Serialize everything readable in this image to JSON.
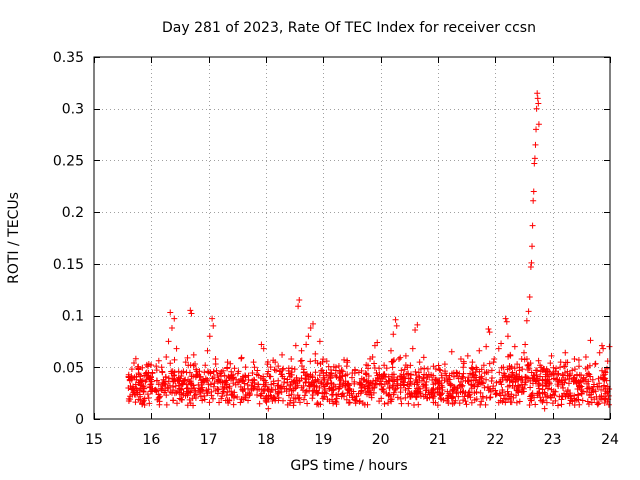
{
  "chart_data": {
    "type": "scatter",
    "title": "Day 281 of 2023, Rate Of TEC Index for receiver ccsn",
    "xlabel": "GPS time / hours",
    "ylabel": "ROTI / TECUs",
    "xlim": [
      15,
      24
    ],
    "ylim": [
      0,
      0.35
    ],
    "xticks": [
      15,
      16,
      17,
      18,
      19,
      20,
      21,
      22,
      23,
      24
    ],
    "xtick_labels": [
      "15",
      "16",
      "17",
      "18",
      "19",
      "20",
      "21",
      "22",
      "23",
      "24"
    ],
    "yticks": [
      0,
      0.05,
      0.1,
      0.15,
      0.2,
      0.25,
      0.3,
      0.35
    ],
    "ytick_labels": [
      "0",
      "0.05",
      "0.1",
      "0.15",
      "0.2",
      "0.25",
      "0.3",
      "0.35"
    ],
    "grid": true,
    "marker": "plus",
    "color": "#ff0000",
    "series": [
      {
        "name": "ROTI",
        "points": [
          [
            15.6,
            0.03
          ],
          [
            15.63,
            0.022
          ],
          [
            15.66,
            0.038
          ],
          [
            15.7,
            0.026
          ],
          [
            15.74,
            0.041
          ],
          [
            15.78,
            0.019
          ],
          [
            15.82,
            0.033
          ],
          [
            15.86,
            0.027
          ],
          [
            15.9,
            0.036
          ],
          [
            15.94,
            0.024
          ],
          [
            15.98,
            0.031
          ],
          [
            16.02,
            0.045
          ],
          [
            16.06,
            0.028
          ],
          [
            16.1,
            0.037
          ],
          [
            16.14,
            0.021
          ],
          [
            16.18,
            0.05
          ],
          [
            16.22,
            0.034
          ],
          [
            16.26,
            0.06
          ],
          [
            16.3,
            0.075
          ],
          [
            16.33,
            0.103
          ],
          [
            16.36,
            0.088
          ],
          [
            16.4,
            0.097
          ],
          [
            16.44,
            0.068
          ],
          [
            16.48,
            0.04
          ],
          [
            16.52,
            0.029
          ],
          [
            16.56,
            0.046
          ],
          [
            16.6,
            0.055
          ],
          [
            16.64,
            0.038
          ],
          [
            16.68,
            0.105
          ],
          [
            16.7,
            0.102
          ],
          [
            16.74,
            0.062
          ],
          [
            16.78,
            0.048
          ],
          [
            16.82,
            0.033
          ],
          [
            16.86,
            0.041
          ],
          [
            16.9,
            0.027
          ],
          [
            16.94,
            0.052
          ],
          [
            16.98,
            0.066
          ],
          [
            17.02,
            0.08
          ],
          [
            17.06,
            0.097
          ],
          [
            17.08,
            0.09
          ],
          [
            17.12,
            0.058
          ],
          [
            17.16,
            0.036
          ],
          [
            17.2,
            0.044
          ],
          [
            17.24,
            0.025
          ],
          [
            17.28,
            0.035
          ],
          [
            17.32,
            0.049
          ],
          [
            17.36,
            0.03
          ],
          [
            17.4,
            0.042
          ],
          [
            17.44,
            0.022
          ],
          [
            17.48,
            0.038
          ],
          [
            17.52,
            0.046
          ],
          [
            17.56,
            0.031
          ],
          [
            17.6,
            0.027
          ],
          [
            17.64,
            0.04
          ],
          [
            17.68,
            0.033
          ],
          [
            17.72,
            0.024
          ],
          [
            17.76,
            0.037
          ],
          [
            17.8,
            0.05
          ],
          [
            17.84,
            0.043
          ],
          [
            17.88,
            0.029
          ],
          [
            17.92,
            0.072
          ],
          [
            17.96,
            0.068
          ],
          [
            18.0,
            0.035
          ],
          [
            18.04,
            0.01
          ],
          [
            18.08,
            0.041
          ],
          [
            18.12,
            0.028
          ],
          [
            18.16,
            0.055
          ],
          [
            18.2,
            0.032
          ],
          [
            18.24,
            0.046
          ],
          [
            18.28,
            0.062
          ],
          [
            18.32,
            0.039
          ],
          [
            18.36,
            0.027
          ],
          [
            18.4,
            0.044
          ],
          [
            18.44,
            0.058
          ],
          [
            18.48,
            0.036
          ],
          [
            18.52,
            0.071
          ],
          [
            18.56,
            0.109
          ],
          [
            18.58,
            0.115
          ],
          [
            18.62,
            0.066
          ],
          [
            18.66,
            0.048
          ],
          [
            18.7,
            0.072
          ],
          [
            18.74,
            0.08
          ],
          [
            18.78,
            0.088
          ],
          [
            18.82,
            0.092
          ],
          [
            18.86,
            0.063
          ],
          [
            18.9,
            0.054
          ],
          [
            18.94,
            0.075
          ],
          [
            18.98,
            0.047
          ],
          [
            19.02,
            0.038
          ],
          [
            19.06,
            0.056
          ],
          [
            19.1,
            0.029
          ],
          [
            19.14,
            0.044
          ],
          [
            19.18,
            0.033
          ],
          [
            19.22,
            0.05
          ],
          [
            19.26,
            0.024
          ],
          [
            19.3,
            0.037
          ],
          [
            19.34,
            0.046
          ],
          [
            19.38,
            0.031
          ],
          [
            19.42,
            0.055
          ],
          [
            19.46,
            0.028
          ],
          [
            19.5,
            0.04
          ],
          [
            19.54,
            0.034
          ],
          [
            19.58,
            0.022
          ],
          [
            19.62,
            0.045
          ],
          [
            19.66,
            0.03
          ],
          [
            19.7,
            0.038
          ],
          [
            19.74,
            0.026
          ],
          [
            19.78,
            0.049
          ],
          [
            19.82,
            0.035
          ],
          [
            19.86,
            0.06
          ],
          [
            19.9,
            0.071
          ],
          [
            19.94,
            0.074
          ],
          [
            19.98,
            0.043
          ],
          [
            20.02,
            0.029
          ],
          [
            20.06,
            0.052
          ],
          [
            20.1,
            0.036
          ],
          [
            20.14,
            0.041
          ],
          [
            20.18,
            0.066
          ],
          [
            20.22,
            0.082
          ],
          [
            20.26,
            0.096
          ],
          [
            20.28,
            0.09
          ],
          [
            20.32,
            0.058
          ],
          [
            20.36,
            0.047
          ],
          [
            20.4,
            0.033
          ],
          [
            20.44,
            0.061
          ],
          [
            20.48,
            0.044
          ],
          [
            20.52,
            0.039
          ],
          [
            20.56,
            0.068
          ],
          [
            20.6,
            0.086
          ],
          [
            20.64,
            0.091
          ],
          [
            20.68,
            0.055
          ],
          [
            20.72,
            0.037
          ],
          [
            20.76,
            0.049
          ],
          [
            20.8,
            0.03
          ],
          [
            20.84,
            0.043
          ],
          [
            20.88,
            0.026
          ],
          [
            20.92,
            0.051
          ],
          [
            20.96,
            0.038
          ],
          [
            21.0,
            0.034
          ],
          [
            21.04,
            0.047
          ],
          [
            21.08,
            0.028
          ],
          [
            21.12,
            0.053
          ],
          [
            21.16,
            0.036
          ],
          [
            21.2,
            0.042
          ],
          [
            21.24,
            0.065
          ],
          [
            21.28,
            0.031
          ],
          [
            21.32,
            0.045
          ],
          [
            21.36,
            0.039
          ],
          [
            21.4,
            0.058
          ],
          [
            21.44,
            0.05
          ],
          [
            21.48,
            0.037
          ],
          [
            21.52,
            0.061
          ],
          [
            21.56,
            0.044
          ],
          [
            21.6,
            0.055
          ],
          [
            21.64,
            0.032
          ],
          [
            21.68,
            0.048
          ],
          [
            21.72,
            0.066
          ],
          [
            21.76,
            0.041
          ],
          [
            21.8,
            0.052
          ],
          [
            21.84,
            0.07
          ],
          [
            21.88,
            0.087
          ],
          [
            21.9,
            0.084
          ],
          [
            21.94,
            0.047
          ],
          [
            21.98,
            0.058
          ],
          [
            22.02,
            0.035
          ],
          [
            22.06,
            0.068
          ],
          [
            22.1,
            0.073
          ],
          [
            22.14,
            0.05
          ],
          [
            22.18,
            0.097
          ],
          [
            22.2,
            0.094
          ],
          [
            22.22,
            0.08
          ],
          [
            22.26,
            0.062
          ],
          [
            22.3,
            0.045
          ],
          [
            22.34,
            0.07
          ],
          [
            22.38,
            0.053
          ],
          [
            22.42,
            0.041
          ],
          [
            22.46,
            0.058
          ],
          [
            22.5,
            0.064
          ],
          [
            22.52,
            0.072
          ],
          [
            22.55,
            0.095
          ],
          [
            22.58,
            0.104
          ],
          [
            22.6,
            0.118
          ],
          [
            22.62,
            0.147
          ],
          [
            22.63,
            0.151
          ],
          [
            22.64,
            0.167
          ],
          [
            22.65,
            0.187
          ],
          [
            22.66,
            0.211
          ],
          [
            22.67,
            0.22
          ],
          [
            22.68,
            0.247
          ],
          [
            22.69,
            0.252
          ],
          [
            22.7,
            0.265
          ],
          [
            22.71,
            0.28
          ],
          [
            22.72,
            0.3
          ],
          [
            22.73,
            0.315
          ],
          [
            22.74,
            0.31
          ],
          [
            22.75,
            0.305
          ],
          [
            22.76,
            0.285
          ],
          [
            22.78,
            0.052
          ],
          [
            22.82,
            0.038
          ],
          [
            22.86,
            0.01
          ],
          [
            22.9,
            0.046
          ],
          [
            22.94,
            0.033
          ],
          [
            22.98,
            0.061
          ],
          [
            23.02,
            0.027
          ],
          [
            23.06,
            0.049
          ],
          [
            23.1,
            0.036
          ],
          [
            23.14,
            0.055
          ],
          [
            23.18,
            0.03
          ],
          [
            23.22,
            0.064
          ],
          [
            23.26,
            0.042
          ],
          [
            23.3,
            0.025
          ],
          [
            23.34,
            0.047
          ],
          [
            23.38,
            0.058
          ],
          [
            23.42,
            0.034
          ],
          [
            23.46,
            0.051
          ],
          [
            23.5,
            0.028
          ],
          [
            23.54,
            0.04
          ],
          [
            23.58,
            0.06
          ],
          [
            23.62,
            0.044
          ],
          [
            23.66,
            0.076
          ],
          [
            23.7,
            0.038
          ],
          [
            23.74,
            0.053
          ],
          [
            23.78,
            0.031
          ],
          [
            23.82,
            0.064
          ],
          [
            23.86,
            0.071
          ],
          [
            23.88,
            0.068
          ],
          [
            23.92,
            0.045
          ],
          [
            23.96,
            0.056
          ],
          [
            23.99,
            0.07
          ]
        ]
      }
    ]
  }
}
